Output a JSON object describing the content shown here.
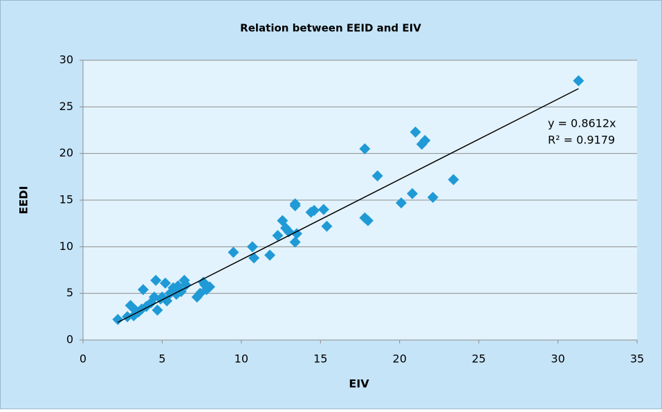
{
  "chart_data": {
    "type": "scatter",
    "title": "Relation between EEID and EIV",
    "x_label": "EIV",
    "y_label": "EEDI",
    "color": "#1f9ad6",
    "x": [
      2.2,
      2.8,
      3.0,
      3.2,
      3.5,
      3.3,
      3.8,
      3.7,
      4.0,
      4.3,
      4.5,
      4.6,
      4.7,
      4.9,
      5.0,
      5.2,
      5.3,
      5.5,
      5.7,
      5.9,
      6.0,
      6.2,
      6.4,
      6.5,
      7.2,
      7.4,
      7.6,
      7.8,
      8.0,
      7.7,
      9.5,
      10.7,
      10.8,
      11.8,
      12.3,
      12.6,
      12.8,
      13.0,
      13.4,
      13.4,
      13.4,
      13.5,
      14.4,
      14.6,
      15.2,
      15.4,
      17.8,
      17.8,
      18.0,
      18.6,
      20.1,
      20.8,
      21.0,
      21.4,
      21.6,
      22.1,
      23.4,
      31.3
    ],
    "values": [
      2.2,
      2.5,
      3.7,
      2.6,
      3.0,
      3.2,
      5.4,
      3.3,
      3.6,
      4.0,
      4.6,
      6.4,
      3.2,
      4.4,
      4.6,
      6.1,
      4.2,
      5.0,
      5.6,
      4.9,
      5.8,
      5.2,
      6.4,
      5.9,
      4.6,
      5.0,
      6.2,
      5.4,
      5.7,
      5.9,
      9.4,
      10.0,
      8.8,
      9.1,
      11.2,
      12.8,
      12.0,
      11.6,
      14.6,
      14.4,
      10.5,
      11.4,
      13.7,
      13.9,
      14.0,
      12.2,
      20.5,
      13.1,
      12.8,
      17.6,
      14.7,
      15.7,
      22.3,
      21.0,
      21.4,
      15.3,
      17.2,
      27.8
    ],
    "trendline": {
      "slope": 0.8612,
      "equation": "y = 0.8612x",
      "r_squared": "R² = 0.9179"
    },
    "xlim": [
      0,
      35
    ],
    "xticks": [
      0,
      5,
      10,
      15,
      20,
      25,
      30,
      35
    ],
    "ylim": [
      0,
      30
    ],
    "yticks": [
      0,
      5,
      10,
      15,
      20,
      25,
      30
    ],
    "grid": true
  }
}
